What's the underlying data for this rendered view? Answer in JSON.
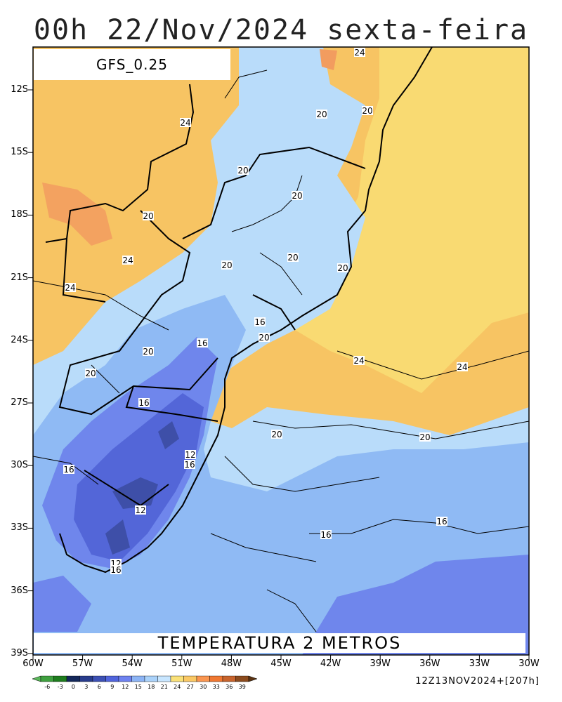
{
  "title": "00h 22/Nov/2024 sexta-feira",
  "model": "GFS_0.25",
  "variable": "TEMPERATURA 2 METROS",
  "run_info": "12Z13NOV2024+[207h]",
  "lat_labels": [
    "12S",
    "15S",
    "18S",
    "21S",
    "24S",
    "27S",
    "30S",
    "33S",
    "36S",
    "39S"
  ],
  "lon_labels": [
    "60W",
    "57W",
    "54W",
    "51W",
    "48W",
    "45W",
    "42W",
    "39W",
    "36W",
    "33W",
    "30W"
  ],
  "contour_labels": [
    {
      "text": "24",
      "id": "c1"
    },
    {
      "text": "20",
      "id": "c2"
    },
    {
      "text": "20",
      "id": "c3"
    },
    {
      "text": "24",
      "id": "c4"
    },
    {
      "text": "20",
      "id": "c5"
    },
    {
      "text": "20",
      "id": "c6"
    },
    {
      "text": "20",
      "id": "c7"
    },
    {
      "text": "24",
      "id": "c8"
    },
    {
      "text": "24",
      "id": "c9"
    },
    {
      "text": "20",
      "id": "c10"
    },
    {
      "text": "20",
      "id": "c11"
    },
    {
      "text": "20",
      "id": "c12"
    },
    {
      "text": "16",
      "id": "c13"
    },
    {
      "text": "16",
      "id": "c14"
    },
    {
      "text": "20",
      "id": "c15"
    },
    {
      "text": "20",
      "id": "c16"
    },
    {
      "text": "20",
      "id": "c17"
    },
    {
      "text": "24",
      "id": "c18"
    },
    {
      "text": "24",
      "id": "c19"
    },
    {
      "text": "16",
      "id": "c20"
    },
    {
      "text": "20",
      "id": "c21"
    },
    {
      "text": "20",
      "id": "c22"
    },
    {
      "text": "12",
      "id": "c23"
    },
    {
      "text": "16",
      "id": "c24"
    },
    {
      "text": "16",
      "id": "c25"
    },
    {
      "text": "12",
      "id": "c26"
    },
    {
      "text": "16",
      "id": "c27"
    },
    {
      "text": "16",
      "id": "c28"
    },
    {
      "text": "12",
      "id": "c29"
    },
    {
      "text": "16",
      "id": "c30"
    }
  ],
  "colorbar": {
    "ticks": [
      "-6",
      "-3",
      "0",
      "3",
      "6",
      "9",
      "12",
      "15",
      "18",
      "21",
      "24",
      "27",
      "30",
      "33",
      "36",
      "39"
    ],
    "colors": [
      "#3fa03f",
      "#1e7d1e",
      "#14285a",
      "#283c8c",
      "#3c50b4",
      "#5064dc",
      "#6e82f0",
      "#8cb4f5",
      "#aad2fa",
      "#c8e6ff",
      "#fae178",
      "#fac864",
      "#fa9650",
      "#f07832",
      "#c8642d",
      "#8c4b1e"
    ]
  },
  "colors": {
    "warm_24_27": "#f7c463",
    "warm_21_24": "#f9da72",
    "warm_27_30": "#f29c5f",
    "cool_18_21": "#b9dcfa",
    "cool_15_18": "#8fbaf4",
    "cool_12_15": "#6f86ec",
    "cool_9_12": "#5366d8",
    "cool_6_9": "#3e4fa8"
  }
}
